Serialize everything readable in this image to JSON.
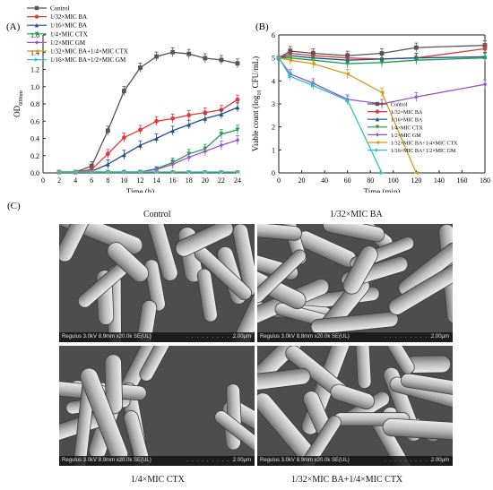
{
  "panels": {
    "a": "(A)",
    "b": "(B)",
    "c": "(C)"
  },
  "chart_data": [
    {
      "type": "line",
      "title": "",
      "xlabel": "Time (h)",
      "ylabel": "OD600nm",
      "ylabel_main": "OD",
      "ylabel_sub": "600nm",
      "xlim": [
        0,
        24
      ],
      "ylim": [
        0,
        1.6
      ],
      "xticks": [
        0,
        2,
        4,
        6,
        8,
        10,
        12,
        14,
        16,
        18,
        20,
        22,
        24
      ],
      "yticks": [
        0.0,
        0.2,
        0.4,
        0.6,
        0.8,
        1.0,
        1.2,
        1.4,
        1.6
      ],
      "ytick_labels": [
        "0.0",
        "0.2",
        "0.4",
        "0.6",
        "0.8",
        "1.0",
        "1.2",
        "1.4",
        "1.6"
      ],
      "legend": "top-left",
      "grid": false,
      "x": [
        2,
        4,
        6,
        8,
        10,
        12,
        14,
        16,
        18,
        20,
        22,
        24
      ],
      "series": [
        {
          "name": "Control",
          "color": "#555555",
          "marker": "square",
          "values": [
            0.01,
            0.01,
            0.08,
            0.49,
            0.95,
            1.22,
            1.35,
            1.4,
            1.38,
            1.33,
            1.31,
            1.27
          ]
        },
        {
          "name": "1/32×MIC BA",
          "color": "#e03a3a",
          "marker": "circle",
          "values": [
            0.01,
            0.01,
            0.04,
            0.22,
            0.41,
            0.5,
            0.6,
            0.63,
            0.67,
            0.7,
            0.73,
            0.85
          ]
        },
        {
          "name": "1/16×MIC BA",
          "color": "#1f4e8c",
          "marker": "triangle-up",
          "values": [
            0.01,
            0.01,
            0.02,
            0.1,
            0.21,
            0.32,
            0.4,
            0.49,
            0.56,
            0.63,
            0.68,
            0.76
          ]
        },
        {
          "name": "1/4×MIC CTX",
          "color": "#1c9e4a",
          "marker": "triangle-down",
          "values": [
            0.01,
            0.01,
            0.01,
            0.01,
            0.01,
            0.01,
            0.05,
            0.12,
            0.22,
            0.28,
            0.45,
            0.5
          ]
        },
        {
          "name": "1/2×MIC GM",
          "color": "#9a55c9",
          "marker": "diamond",
          "values": [
            0.01,
            0.01,
            0.01,
            0.01,
            0.01,
            0.01,
            0.04,
            0.1,
            0.18,
            0.25,
            0.32,
            0.38
          ]
        },
        {
          "name": "1/32×MIC BA+1/4×MIC CTX",
          "color": "#d69a1a",
          "marker": "triangle-left",
          "values": [
            0.01,
            0.01,
            0.01,
            0.01,
            0.01,
            0.01,
            0.01,
            0.01,
            0.01,
            0.01,
            0.01,
            0.01
          ]
        },
        {
          "name": "1/16×MIC BA+1/2×MIC GM",
          "color": "#2cc1cf",
          "marker": "triangle-right",
          "values": [
            0.01,
            0.01,
            0.01,
            0.01,
            0.01,
            0.01,
            0.01,
            0.01,
            0.01,
            0.01,
            0.01,
            0.01
          ]
        }
      ]
    },
    {
      "type": "line",
      "title": "",
      "xlabel": "Time (min)",
      "ylabel": "Viable count (log10 CFU/mL)",
      "ylabel_pre": "Viable count (log",
      "ylabel_sub": "10",
      "ylabel_post": " CFU/mL)",
      "xlim": [
        0,
        180
      ],
      "ylim": [
        0,
        6
      ],
      "xticks": [
        0,
        20,
        40,
        60,
        80,
        100,
        120,
        140,
        160,
        180
      ],
      "yticks": [
        0,
        1,
        2,
        3,
        4,
        5,
        6
      ],
      "legend": "center-right",
      "grid": false,
      "series": [
        {
          "name": "Control",
          "color": "#555555",
          "marker": "square",
          "x": [
            0,
            10,
            30,
            60,
            90,
            120,
            180
          ],
          "values": [
            5.0,
            5.3,
            5.2,
            5.1,
            5.2,
            5.45,
            5.55
          ]
        },
        {
          "name": "1/32×MIC BA",
          "color": "#e03a3a",
          "marker": "circle",
          "x": [
            0,
            10,
            30,
            60,
            90,
            120,
            180
          ],
          "values": [
            5.0,
            5.2,
            5.1,
            5.0,
            4.95,
            5.0,
            5.4
          ]
        },
        {
          "name": "1/16×MIC BA",
          "color": "#1f4e8c",
          "marker": "triangle-up",
          "x": [
            0,
            10,
            30,
            60,
            90,
            120,
            180
          ],
          "values": [
            5.0,
            5.1,
            5.0,
            4.9,
            4.95,
            5.0,
            5.05
          ]
        },
        {
          "name": "1/4×MIC CTX",
          "color": "#1c9e4a",
          "marker": "triangle-down",
          "x": [
            0,
            10,
            30,
            60,
            90,
            120,
            180
          ],
          "values": [
            5.0,
            5.0,
            4.9,
            4.75,
            4.8,
            4.9,
            5.0
          ]
        },
        {
          "name": "1/2×MIC GM",
          "color": "#9a55c9",
          "marker": "diamond",
          "x": [
            0,
            10,
            30,
            60,
            90,
            120,
            180
          ],
          "values": [
            5.0,
            4.3,
            3.9,
            3.2,
            3.0,
            3.3,
            3.85
          ]
        },
        {
          "name": "1/32×MIC BA+1/4×MIC CTX",
          "color": "#d69a1a",
          "marker": "triangle-left",
          "x": [
            0,
            10,
            30,
            60,
            90,
            120
          ],
          "values": [
            5.0,
            4.9,
            4.75,
            4.3,
            3.5,
            0.0
          ]
        },
        {
          "name": "1/16×MIC BA+1/2×MIC GM",
          "color": "#2cc1cf",
          "marker": "triangle-right",
          "x": [
            0,
            10,
            30,
            60,
            90
          ],
          "values": [
            5.0,
            4.2,
            3.8,
            3.15,
            0.0
          ]
        }
      ]
    }
  ],
  "sem_images": [
    {
      "caption": "Control",
      "info": "Regulus 3.0kV 8.9mm x20.0k SE(UL)",
      "scale": "2.00μm"
    },
    {
      "caption": "1/32×MIC BA",
      "info": "Regulus 3.0kV 8.8mm x20.0k SE(UL)",
      "scale": "2.00μm"
    },
    {
      "caption": "1/4×MIC CTX",
      "info": "Regulus 3.0kV 8.9mm x20.0k SE(UL)",
      "scale": "2.00μm"
    },
    {
      "caption": "1/32×MIC BA+1/4×MIC CTX",
      "info": "Regulus 3.0kV 8.9mm x20.0k SE(UL)",
      "scale": "2.00μm"
    }
  ],
  "colors": {
    "axis": "#222222",
    "sem_background": "#5b5b5b"
  }
}
